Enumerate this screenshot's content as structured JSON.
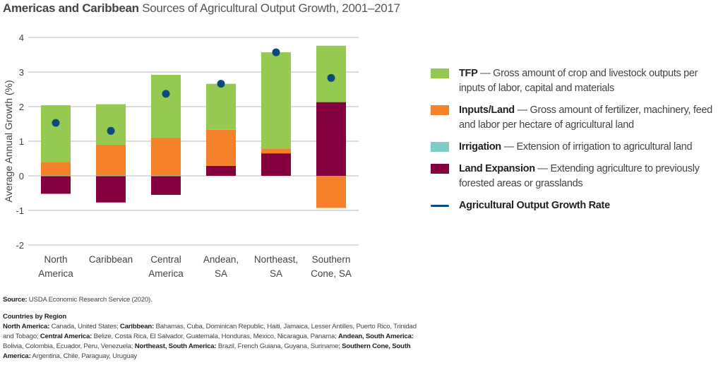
{
  "title": {
    "bold": "Americas and Caribbean",
    "rest": "Sources of Agricultural Output Growth, 2001–2017"
  },
  "chart_data": {
    "type": "bar",
    "stacked": true,
    "ylabel": "Average Annual Growth (%)",
    "ylim": [
      -2,
      4
    ],
    "yticks": [
      4,
      3,
      2,
      1,
      0,
      -1,
      -2
    ],
    "grid": true,
    "legend_position": "right",
    "categories": [
      [
        "North",
        "America"
      ],
      [
        "Caribbean"
      ],
      [
        "Central",
        "America"
      ],
      [
        "Andean,",
        "SA"
      ],
      [
        "Northeast,",
        "SA"
      ],
      [
        "Southern",
        "Cone, SA"
      ]
    ],
    "series": [
      {
        "name": "Land Expansion",
        "color": "#84003f",
        "values": [
          -0.52,
          -0.77,
          -0.55,
          0.29,
          0.65,
          2.13
        ]
      },
      {
        "name": "Irrigation",
        "color": "#7fcdc6",
        "values": [
          0.01,
          0.01,
          0.01,
          0.0,
          0.0,
          0.0
        ]
      },
      {
        "name": "Inputs/Land",
        "color": "#f5822a",
        "values": [
          0.39,
          0.89,
          1.09,
          1.04,
          0.14,
          -0.93
        ]
      },
      {
        "name": "TFP",
        "color": "#96c94f",
        "values": [
          1.64,
          1.17,
          1.82,
          1.33,
          2.78,
          1.63
        ]
      }
    ],
    "points": {
      "name": "Agricultural Output Growth Rate",
      "color": "#0b4a7a",
      "values": [
        1.53,
        1.3,
        2.37,
        2.66,
        3.57,
        2.83
      ]
    }
  },
  "legend": [
    {
      "label": "TFP",
      "desc": "— Gross amount of crop and livestock outputs per inputs of labor, capital and materials",
      "color": "#96c94f"
    },
    {
      "label": "Inputs/Land",
      "desc": "— Gross amount of fertilizer, machinery, feed and labor per hectare of agricultural land",
      "color": "#f5822a"
    },
    {
      "label": "Irrigation",
      "desc": "— Extension of irrigation to agricultural land",
      "color": "#7fcdc6"
    },
    {
      "label": "Land Expansion",
      "desc": "— Extending agriculture to previously forested areas or grasslands",
      "color": "#84003f"
    },
    {
      "label": "Agricultural Output Growth Rate",
      "desc": "",
      "color": "#0b4a7a"
    }
  ],
  "notes": {
    "source_label": "Source:",
    "source_text": "USDA Economic Research Service (2020).",
    "countries_heading": "Countries by Region",
    "regions": [
      {
        "name": "North America:",
        "countries": "Canada, United States;"
      },
      {
        "name": "Caribbean:",
        "countries": "Bahamas, Cuba, Dominican Republic, Haiti, Jamaica, Lesser Antilles, Puerto Rico, Trinidad and Tobago;"
      },
      {
        "name": "Central America:",
        "countries": "Belize, Costa Rica, El Salvador, Guatemala, Honduras, Mexico, Nicaragua, Panama;"
      },
      {
        "name": "Andean, South America:",
        "countries": "Bolivia, Colombia, Ecuador, Peru, Venezuela;"
      },
      {
        "name": "Northeast, South America:",
        "countries": "Brazil, French Guiana, Guyana, Suriname;"
      },
      {
        "name": "Southern Cone, South America:",
        "countries": "Argentina, Chile, Paraguay, Uruguay"
      }
    ]
  }
}
